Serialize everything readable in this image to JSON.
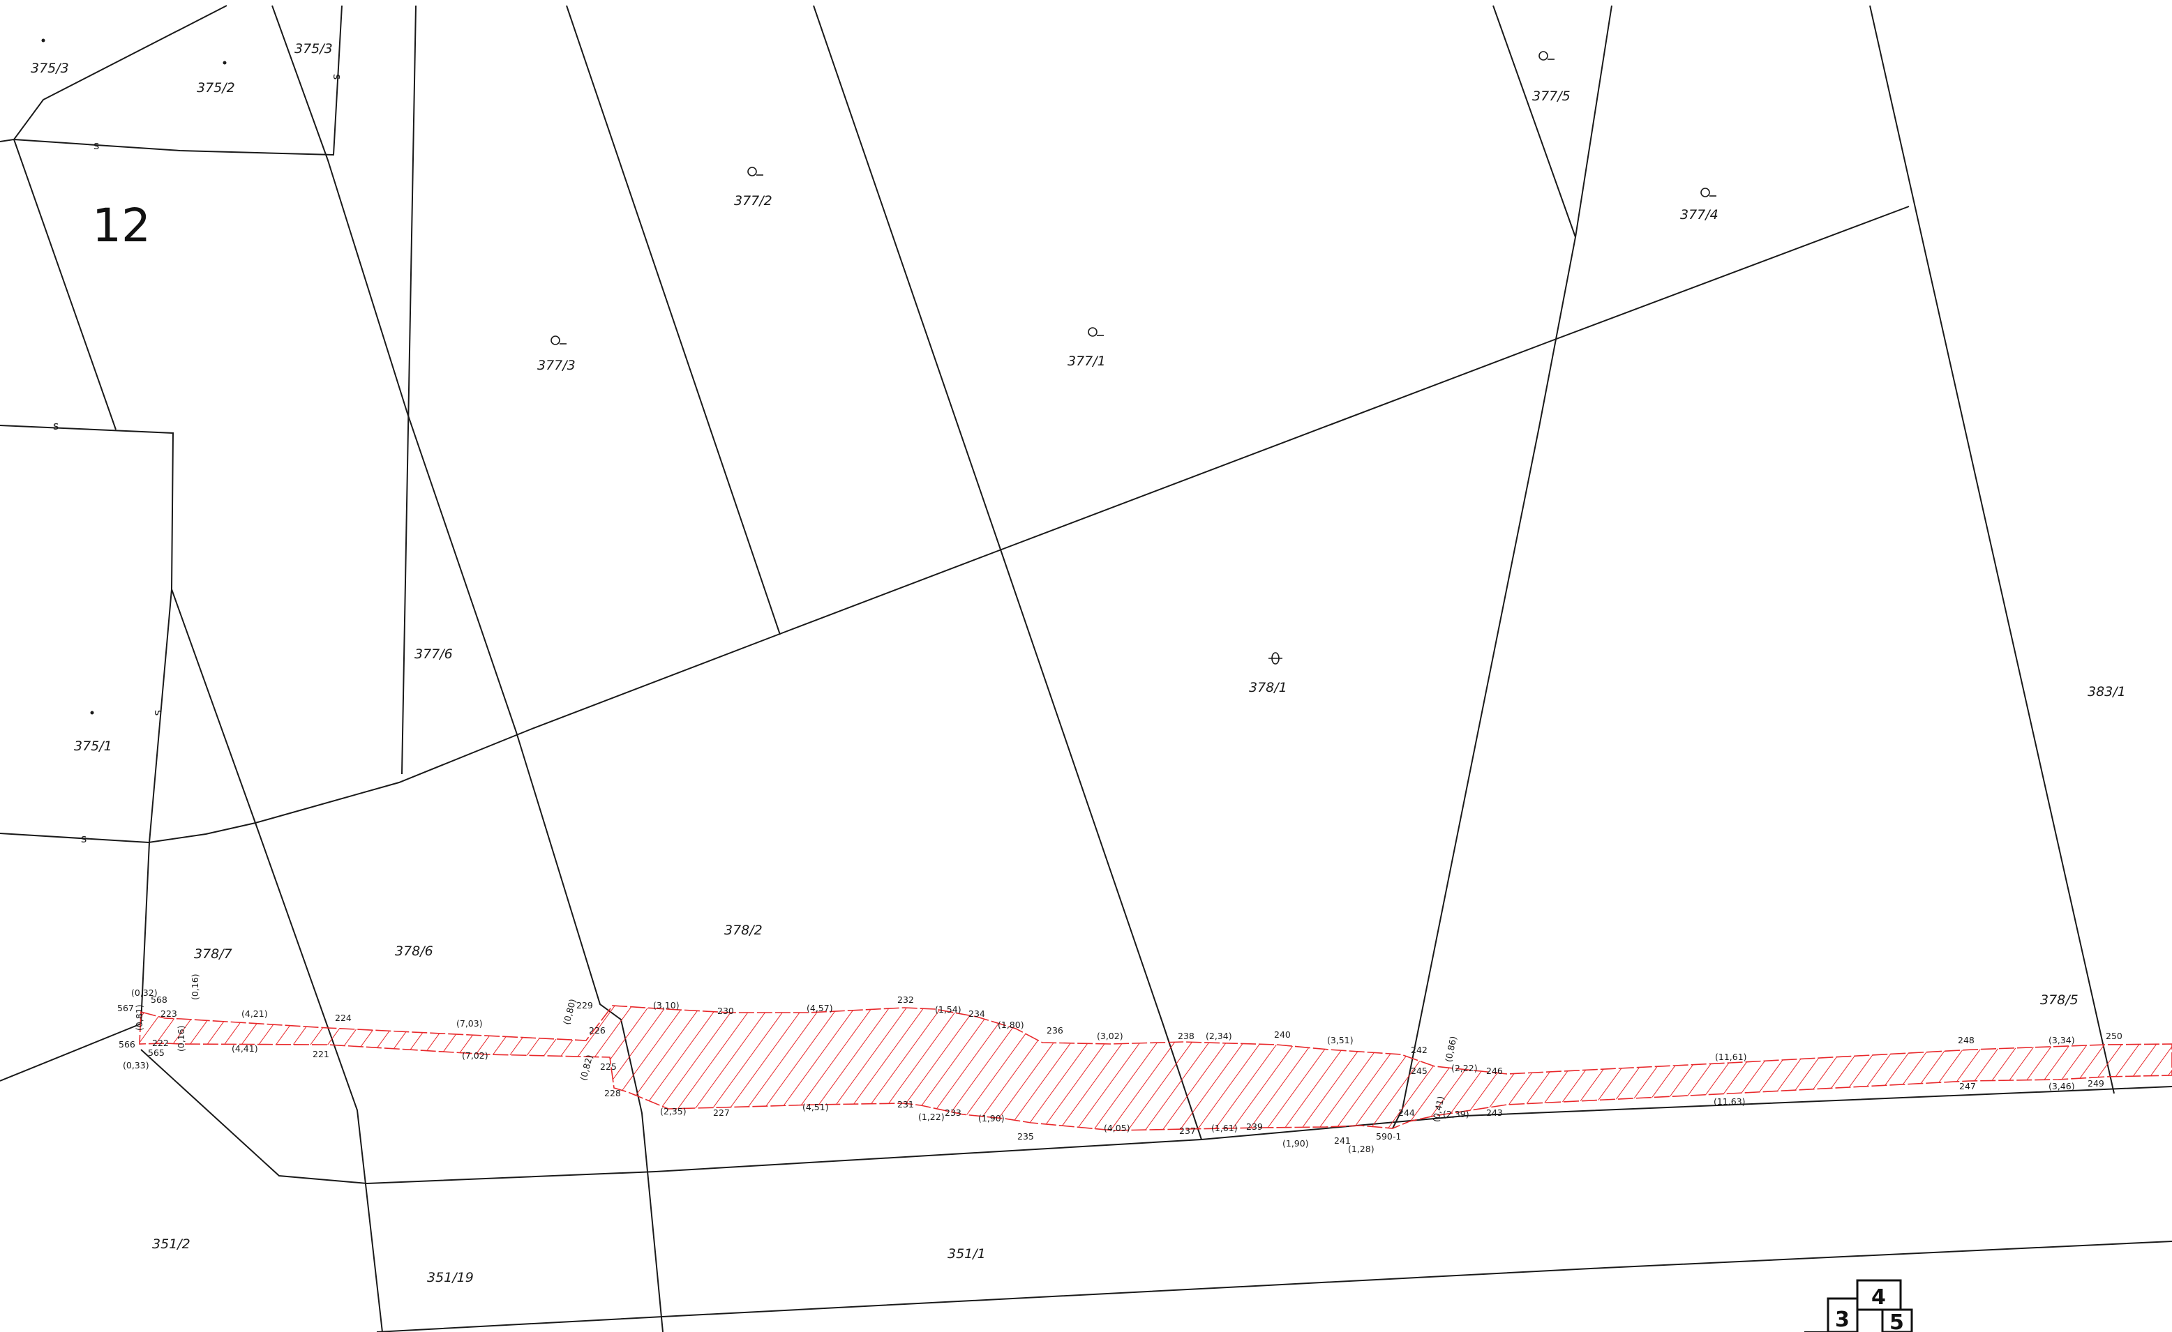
{
  "block_number": "12",
  "parcels": [
    "375/3",
    "375/2",
    "375/3",
    "377/5",
    "377/2",
    "377/4",
    "377/3",
    "377/1",
    "378/1",
    "383/1",
    "377/6",
    "375/1",
    "378/2",
    "378/7",
    "378/6",
    "378/5",
    "351/2",
    "351/19",
    "351/1"
  ],
  "land_use_marks": [
    "s",
    "s",
    "s",
    "s",
    "s"
  ],
  "symbols": [
    "dot",
    "dot",
    "dot",
    "orchard",
    "orchard",
    "orchard",
    "orchard",
    "orchard",
    "orchard",
    "pasture"
  ],
  "point_numbers": [
    "567",
    "568",
    "223",
    "566",
    "222",
    "565",
    "221",
    "224",
    "229",
    "226",
    "225",
    "228",
    "230",
    "227",
    "232",
    "231",
    "233",
    "234",
    "236",
    "235",
    "238",
    "237",
    "239",
    "240",
    "241",
    "590-1",
    "242",
    "245",
    "244",
    "246",
    "243",
    "248",
    "247",
    "250",
    "249"
  ],
  "distances": [
    "(0,32)",
    "(0,81)",
    "(0,16)",
    "(0,16)",
    "(0,33)",
    "(4,21)",
    "(4,41)",
    "(7,03)",
    "(7,02)",
    "(0,80)",
    "(0,82)",
    "(3,10)",
    "(2,35)",
    "(4,57)",
    "(4,51)",
    "(1,54)",
    "(1,22)",
    "(1,80)",
    "(1,90)",
    "(3,02)",
    "(4,05)",
    "(2,34)",
    "(1,61)",
    "(3,51)",
    "(1,90)",
    "(1,28)",
    "(0,86)",
    "(0,41)",
    "(2,22)",
    "(2,39)",
    "(11,61)",
    "(11,63)",
    "(3,34)",
    "(3,46)"
  ],
  "sheet_index": [
    "4",
    "3",
    "5"
  ],
  "colors": {
    "lines": "#1a1a1a",
    "strip": "#e8282b",
    "background": "#ffffff"
  }
}
